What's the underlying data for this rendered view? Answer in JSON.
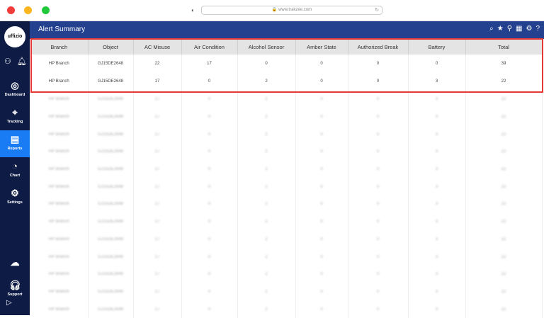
{
  "browser": {
    "url": "www.trakzee.com"
  },
  "sidebar": {
    "logo": "uffizio",
    "items": [
      {
        "label": "Dashboard",
        "icon": "gauge-icon"
      },
      {
        "label": "Tracking",
        "icon": "location-pin-icon"
      },
      {
        "label": "Reports",
        "icon": "report-icon",
        "active": true
      },
      {
        "label": "Chart",
        "icon": "pie-chart-icon"
      },
      {
        "label": "Settings",
        "icon": "gear-icon"
      }
    ],
    "support": "Support"
  },
  "header": {
    "title": "Alert Summary"
  },
  "table": {
    "columns": [
      "Branch",
      "Object",
      "AC Misuse",
      "Air Condition",
      "Alcohol Sensor",
      "Amber State",
      "Authorized Break",
      "Battery",
      "Total"
    ],
    "rows": [
      [
        "HP Branch",
        "GJ15DE2648",
        "22",
        "17",
        "0",
        "0",
        "0",
        "0",
        "39"
      ],
      [
        "HP Branch",
        "GJ15DE2648",
        "17",
        "0",
        "2",
        "0",
        "0",
        "3",
        "22"
      ]
    ],
    "blurred_row": [
      "HP Branch",
      "GJ15DE2648",
      "17",
      "0",
      "2",
      "0",
      "0",
      "3",
      "22"
    ]
  },
  "colors": {
    "sidebar": "#0d1b45",
    "header": "#23418f",
    "active": "#1a7cf5",
    "highlight": "#e53935"
  }
}
